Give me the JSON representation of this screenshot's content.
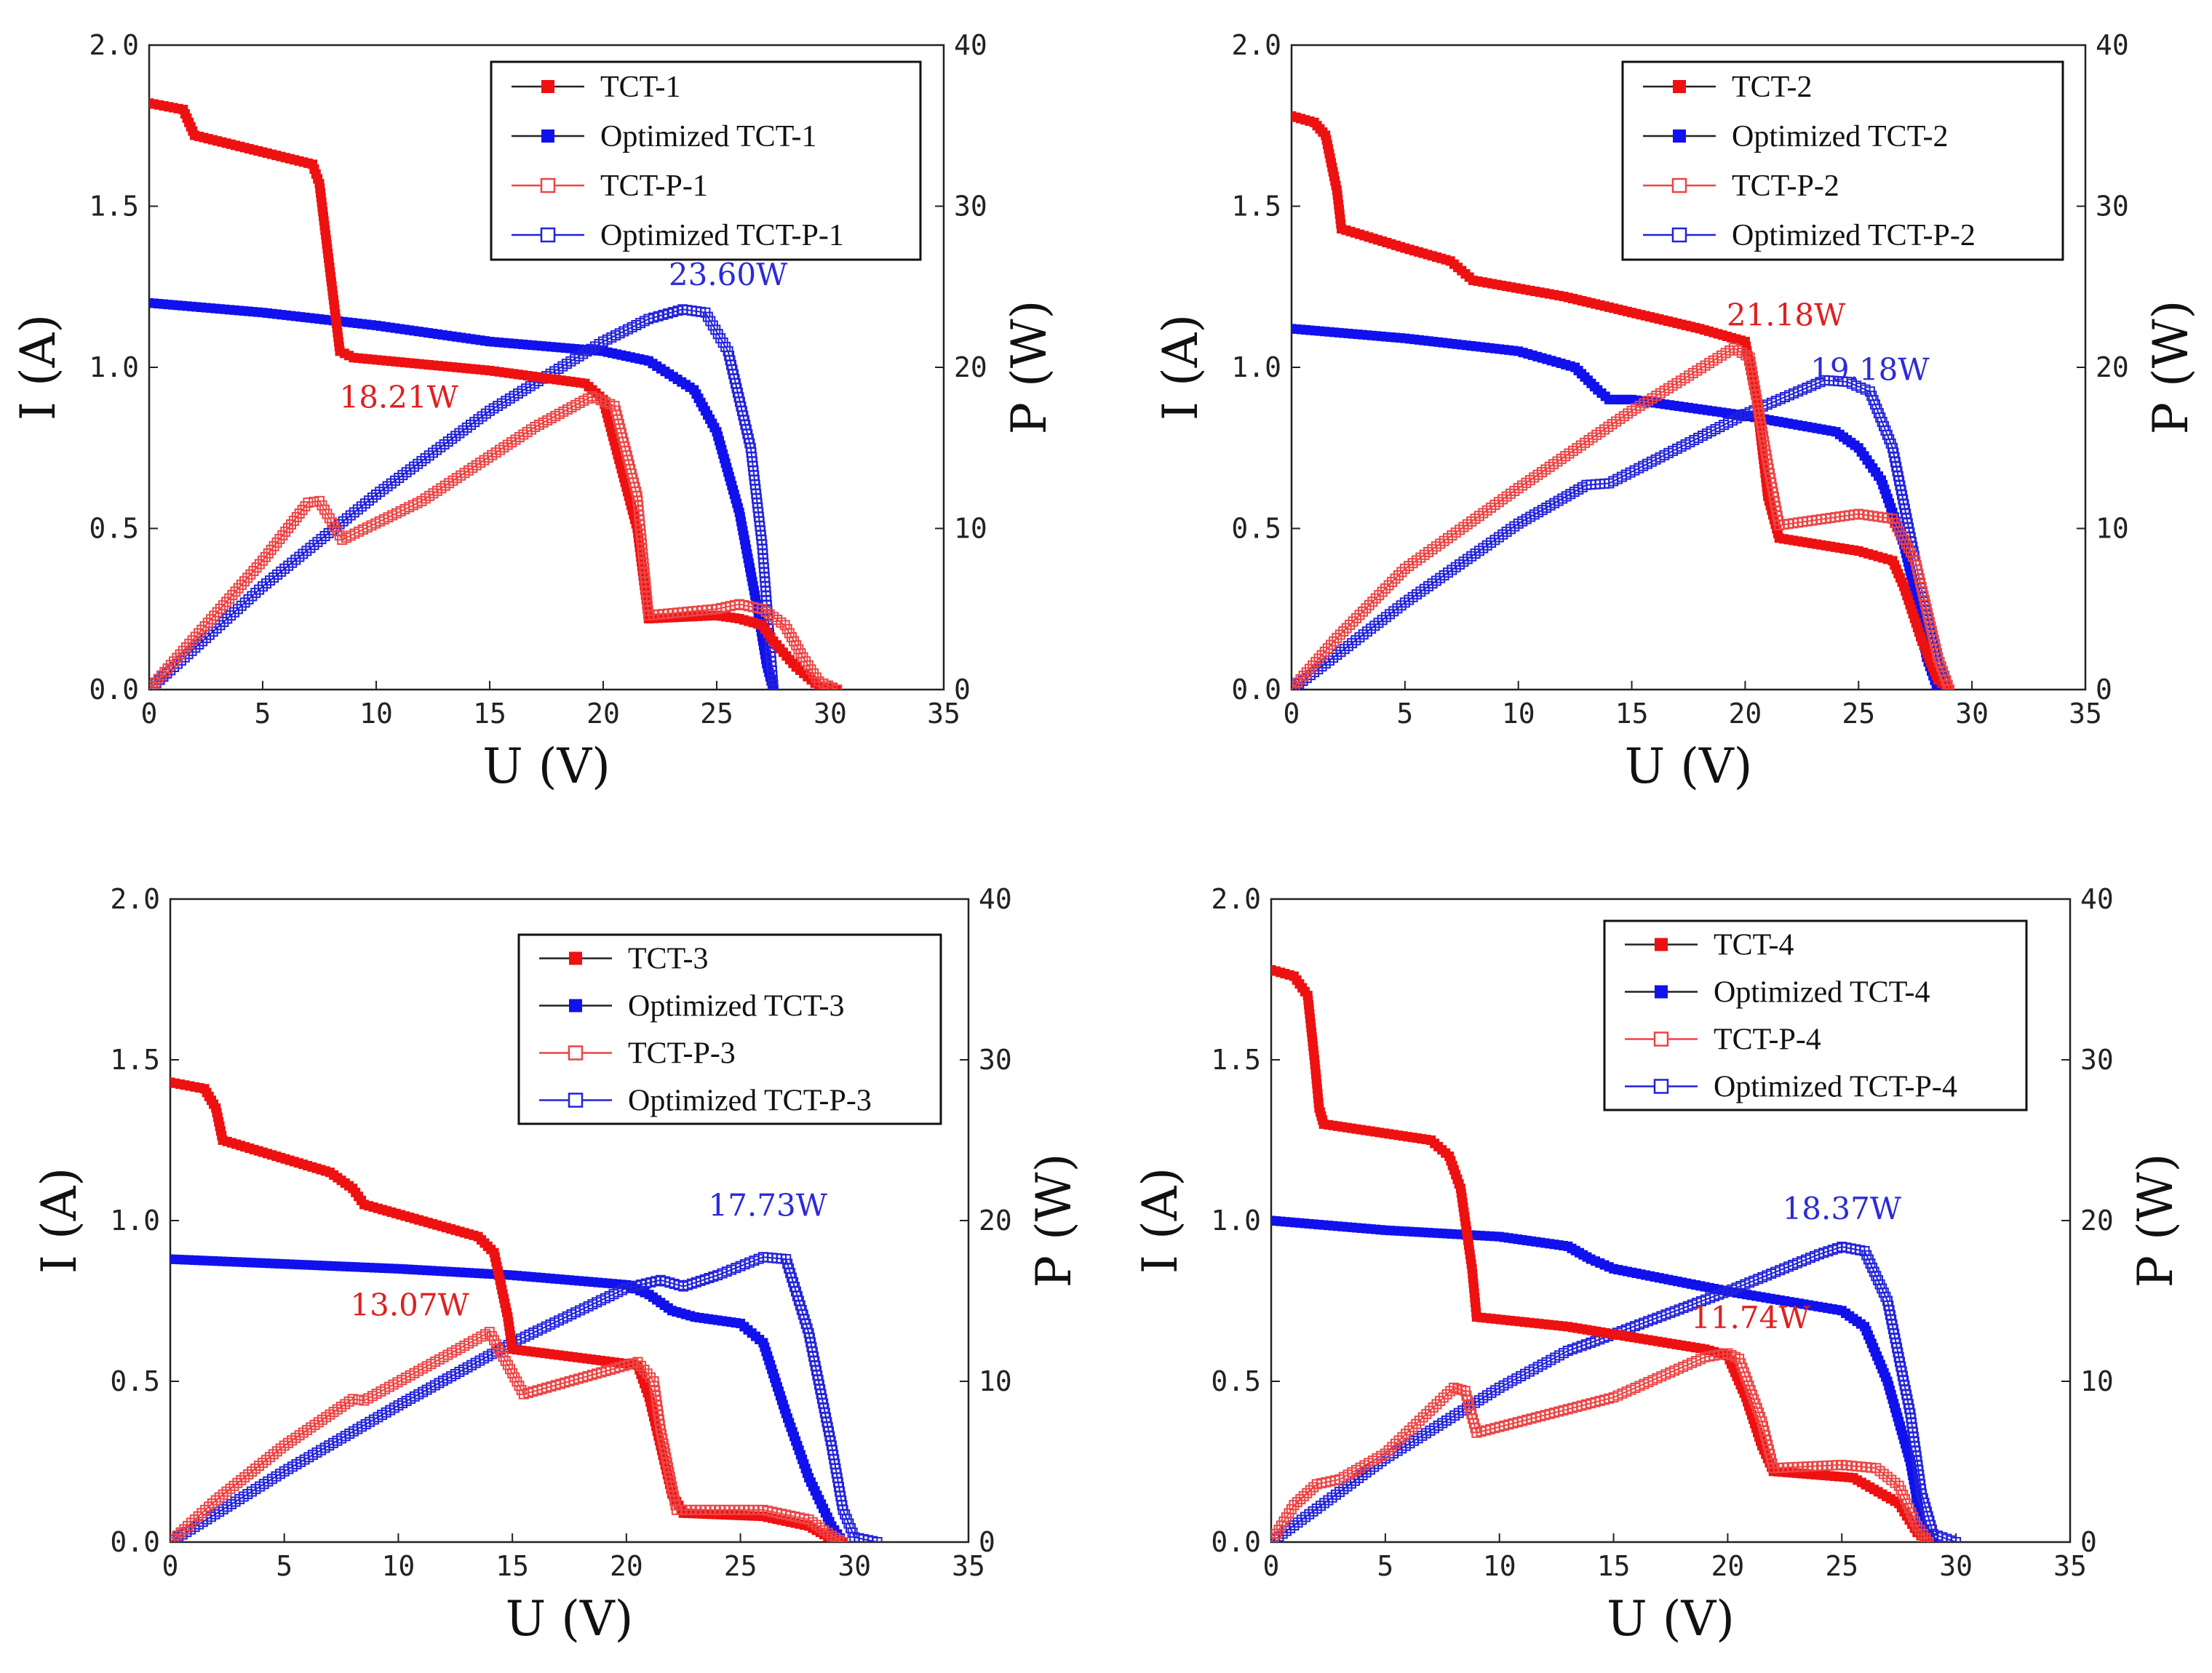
{
  "chart_data": [
    {
      "type": "line",
      "panel": "top-left",
      "xlabel": "U (V)",
      "ylabel_left": "I (A)",
      "ylabel_right": "P (W)",
      "xlim": [
        0,
        35
      ],
      "ylim_left": [
        0,
        2.0
      ],
      "ylim_right": [
        0,
        40
      ],
      "x_ticks": [
        "0",
        "5",
        "10",
        "15",
        "20",
        "25",
        "30",
        "35"
      ],
      "y_left_ticks": [
        "0.0",
        "0.5",
        "1.0",
        "1.5",
        "2.0"
      ],
      "y_right_ticks": [
        "0",
        "10",
        "20",
        "30",
        "40"
      ],
      "legend_position": "top-right",
      "legend": [
        "TCT-1",
        "Optimized TCT-1",
        "TCT-P-1",
        "Optimized TCT-P-1"
      ],
      "annotations": [
        {
          "text": "23.60W",
          "x": 25.5,
          "y": 25.1,
          "axis": "right",
          "color": "#2b2bd8"
        },
        {
          "text": "18.21W",
          "x": 11.0,
          "y": 17.5,
          "axis": "right",
          "color": "#e02020"
        }
      ],
      "series": [
        {
          "name": "TCT-1",
          "axis": "left",
          "marker": "filled-square",
          "color": "#ee1111",
          "x": [
            0,
            1.5,
            2,
            7.2,
            7.5,
            8.4,
            9,
            15,
            19.2,
            20,
            21.5,
            22,
            25,
            26,
            27,
            27.5,
            28.5,
            29.5,
            30.3
          ],
          "y": [
            1.82,
            1.8,
            1.72,
            1.63,
            1.57,
            1.05,
            1.03,
            0.99,
            0.95,
            0.9,
            0.5,
            0.22,
            0.23,
            0.22,
            0.2,
            0.15,
            0.07,
            0.01,
            0
          ]
        },
        {
          "name": "Optimized TCT-1",
          "axis": "left",
          "marker": "filled-square",
          "color": "#1111ee",
          "x": [
            0,
            5,
            10,
            15,
            20,
            22,
            24,
            25,
            26,
            26.8,
            27.2,
            27.5
          ],
          "y": [
            1.2,
            1.17,
            1.13,
            1.08,
            1.05,
            1.02,
            0.93,
            0.8,
            0.55,
            0.25,
            0.08,
            0
          ]
        },
        {
          "name": "TCT-P-1",
          "axis": "right",
          "marker": "open-square",
          "color": "#ee4444",
          "x": [
            0,
            3,
            5,
            7,
            7.5,
            8.5,
            12,
            17,
            19.5,
            20.5,
            21.5,
            22,
            25,
            26,
            27,
            28,
            28.8,
            29.5,
            30.3
          ],
          "y": [
            0,
            4.8,
            8,
            11.6,
            11.7,
            9.3,
            11.7,
            16.3,
            18.2,
            17.6,
            12,
            4.6,
            5,
            5.3,
            5,
            4,
            2,
            0.5,
            0
          ]
        },
        {
          "name": "Optimized TCT-P-1",
          "axis": "right",
          "marker": "open-square",
          "color": "#2222dd",
          "x": [
            0,
            5,
            10,
            15,
            20,
            22,
            23.5,
            24.5,
            25.5,
            26.5,
            27,
            27.5
          ],
          "y": [
            0,
            6.4,
            12.1,
            17.3,
            21.6,
            23,
            23.6,
            23.4,
            21,
            15,
            9,
            0
          ]
        }
      ]
    },
    {
      "type": "line",
      "panel": "top-right",
      "xlabel": "U (V)",
      "ylabel_left": "I (A)",
      "ylabel_right": "P (W)",
      "xlim": [
        0,
        35
      ],
      "ylim_left": [
        0,
        2.0
      ],
      "ylim_right": [
        0,
        40
      ],
      "x_ticks": [
        "0",
        "5",
        "10",
        "15",
        "20",
        "25",
        "30",
        "35"
      ],
      "y_left_ticks": [
        "0.0",
        "0.5",
        "1.0",
        "1.5",
        "2.0"
      ],
      "y_right_ticks": [
        "0",
        "10",
        "20",
        "30",
        "40"
      ],
      "legend_position": "top-right",
      "legend": [
        "TCT-2",
        "Optimized TCT-2",
        "TCT-P-2",
        "Optimized TCT-P-2"
      ],
      "annotations": [
        {
          "text": "21.18W",
          "x": 21.8,
          "y": 22.6,
          "axis": "right",
          "color": "#e02020"
        },
        {
          "text": "19.18W",
          "x": 25.5,
          "y": 19.2,
          "axis": "right",
          "color": "#2b2bd8"
        }
      ],
      "series": [
        {
          "name": "TCT-2",
          "axis": "left",
          "marker": "filled-square",
          "color": "#ee1111",
          "x": [
            0,
            1,
            1.5,
            2,
            2.2,
            5,
            7,
            8,
            12,
            15,
            18,
            20,
            20.5,
            21,
            21.5,
            25,
            26.5,
            27,
            27.8,
            28.5,
            29
          ],
          "y": [
            1.78,
            1.76,
            1.72,
            1.55,
            1.43,
            1.37,
            1.33,
            1.27,
            1.22,
            1.17,
            1.12,
            1.08,
            0.9,
            0.6,
            0.47,
            0.43,
            0.4,
            0.32,
            0.15,
            0.03,
            0
          ]
        },
        {
          "name": "Optimized TCT-2",
          "axis": "left",
          "marker": "filled-square",
          "color": "#1111ee",
          "x": [
            0,
            5,
            10,
            12.5,
            13.5,
            14,
            15,
            20,
            24,
            25,
            26,
            27,
            27.5,
            28,
            28.5
          ],
          "y": [
            1.12,
            1.09,
            1.05,
            1.0,
            0.93,
            0.9,
            0.9,
            0.85,
            0.8,
            0.75,
            0.65,
            0.45,
            0.3,
            0.1,
            0
          ]
        },
        {
          "name": "TCT-P-2",
          "axis": "right",
          "marker": "open-square",
          "color": "#ee4444",
          "x": [
            0,
            2,
            5,
            10,
            15,
            19.5,
            20.2,
            21,
            21.5,
            25,
            26.5,
            27.5,
            28,
            28.5,
            29
          ],
          "y": [
            0,
            3.2,
            7.5,
            12.5,
            17.3,
            21.2,
            20.6,
            14,
            10.2,
            10.9,
            10.6,
            8,
            5,
            2,
            0
          ]
        },
        {
          "name": "Optimized TCT-P-2",
          "axis": "right",
          "marker": "open-square",
          "color": "#2222dd",
          "x": [
            0,
            5,
            10,
            13,
            14,
            20,
            23.5,
            24.5,
            25.5,
            26.5,
            27.5,
            28.5,
            29
          ],
          "y": [
            0,
            5.4,
            10.3,
            12.7,
            12.8,
            17.1,
            19.2,
            19.1,
            18.5,
            15,
            8,
            1.5,
            0
          ]
        }
      ]
    },
    {
      "type": "line",
      "panel": "bottom-left",
      "xlabel": "U (V)",
      "ylabel_left": "I (A)",
      "ylabel_right": "P (W)",
      "xlim": [
        0,
        35
      ],
      "ylim_left": [
        0,
        2.0
      ],
      "ylim_right": [
        0,
        40
      ],
      "x_ticks": [
        "0",
        "5",
        "10",
        "15",
        "20",
        "25",
        "30",
        "35"
      ],
      "y_left_ticks": [
        "0.0",
        "0.5",
        "1.0",
        "1.5",
        "2.0"
      ],
      "y_right_ticks": [
        "0",
        "10",
        "20",
        "30",
        "40"
      ],
      "legend_position": "top-right",
      "legend": [
        "TCT-3",
        "Optimized TCT-3",
        "TCT-P-3",
        "Optimized TCT-P-3"
      ],
      "annotations": [
        {
          "text": "17.73W",
          "x": 26.2,
          "y": 20.3,
          "axis": "right",
          "color": "#2b2bd8"
        },
        {
          "text": "13.07W",
          "x": 10.5,
          "y": 14.1,
          "axis": "right",
          "color": "#e02020"
        }
      ],
      "series": [
        {
          "name": "TCT-3",
          "axis": "left",
          "marker": "filled-square",
          "color": "#ee1111",
          "x": [
            0,
            1.5,
            2,
            2.3,
            7,
            8,
            8.5,
            13.5,
            14.2,
            14.8,
            15,
            20.5,
            21,
            21.5,
            22,
            22.5,
            26,
            28,
            29,
            29.5
          ],
          "y": [
            1.43,
            1.41,
            1.35,
            1.25,
            1.15,
            1.1,
            1.05,
            0.95,
            0.9,
            0.7,
            0.6,
            0.55,
            0.45,
            0.3,
            0.15,
            0.09,
            0.08,
            0.05,
            0.01,
            0
          ]
        },
        {
          "name": "Optimized TCT-3",
          "axis": "left",
          "marker": "filled-square",
          "color": "#1111ee",
          "x": [
            0,
            10,
            15,
            20,
            21,
            22,
            23,
            25,
            26,
            27,
            28,
            29,
            29.5
          ],
          "y": [
            0.88,
            0.85,
            0.83,
            0.8,
            0.77,
            0.72,
            0.7,
            0.68,
            0.62,
            0.4,
            0.2,
            0.05,
            0
          ]
        },
        {
          "name": "TCT-P-3",
          "axis": "right",
          "marker": "open-square",
          "color": "#ee4444",
          "x": [
            0,
            2,
            5,
            8,
            8.5,
            14,
            15,
            15.5,
            20.5,
            21.2,
            21.5,
            22.2,
            26,
            28,
            29,
            29.5
          ],
          "y": [
            0,
            2.6,
            6,
            8.9,
            8.8,
            13.07,
            10.5,
            9.2,
            11.2,
            10,
            7,
            2,
            2,
            1.4,
            0.4,
            0
          ]
        },
        {
          "name": "Optimized TCT-P-3",
          "axis": "right",
          "marker": "open-square",
          "color": "#2222dd",
          "x": [
            0,
            5,
            10,
            15,
            20,
            21.5,
            22.5,
            24,
            26,
            27,
            28,
            29,
            29.5,
            30,
            31
          ],
          "y": [
            0,
            4.4,
            8.5,
            12.4,
            15.8,
            16.3,
            15.9,
            16.6,
            17.73,
            17.6,
            13,
            6,
            2,
            0.3,
            0
          ]
        }
      ]
    },
    {
      "type": "line",
      "panel": "bottom-right",
      "xlabel": "U (V)",
      "ylabel_left": "I (A)",
      "ylabel_right": "P (W)",
      "xlim": [
        0,
        35
      ],
      "ylim_left": [
        0,
        2.0
      ],
      "ylim_right": [
        0,
        40
      ],
      "x_ticks": [
        "0",
        "5",
        "10",
        "15",
        "20",
        "25",
        "30",
        "35"
      ],
      "y_left_ticks": [
        "0.0",
        "0.5",
        "1.0",
        "1.5",
        "2.0"
      ],
      "y_right_ticks": [
        "0",
        "10",
        "20",
        "30",
        "40"
      ],
      "legend_position": "top-right",
      "legend": [
        "TCT-4",
        "Optimized TCT-4",
        "TCT-P-4",
        "Optimized TCT-P-4"
      ],
      "annotations": [
        {
          "text": "18.37W",
          "x": 25.0,
          "y": 20.1,
          "axis": "right",
          "color": "#2b2bd8"
        },
        {
          "text": "11.74W",
          "x": 21.0,
          "y": 13.3,
          "axis": "right",
          "color": "#e02020"
        }
      ],
      "series": [
        {
          "name": "TCT-4",
          "axis": "left",
          "marker": "filled-square",
          "color": "#ee1111",
          "x": [
            0,
            1,
            1.6,
            1.9,
            2.1,
            2.3,
            7,
            7.8,
            8.3,
            8.8,
            9,
            13,
            19,
            20,
            20.8,
            21.5,
            22,
            25.5,
            27.5,
            28.3,
            28.8
          ],
          "y": [
            1.78,
            1.76,
            1.7,
            1.5,
            1.35,
            1.3,
            1.25,
            1.2,
            1.1,
            0.85,
            0.7,
            0.67,
            0.6,
            0.58,
            0.45,
            0.3,
            0.22,
            0.2,
            0.12,
            0.03,
            0
          ]
        },
        {
          "name": "Optimized TCT-4",
          "axis": "left",
          "marker": "filled-square",
          "color": "#1111ee",
          "x": [
            0,
            5,
            10,
            13,
            14,
            15,
            20,
            25,
            26,
            27,
            28,
            28.5,
            29
          ],
          "y": [
            1.0,
            0.97,
            0.95,
            0.92,
            0.88,
            0.85,
            0.78,
            0.72,
            0.67,
            0.5,
            0.25,
            0.05,
            0
          ]
        },
        {
          "name": "TCT-P-4",
          "axis": "right",
          "marker": "open-square",
          "color": "#ee4444",
          "x": [
            0,
            1,
            2,
            3,
            5,
            8,
            8.5,
            9,
            15,
            19,
            20,
            20.5,
            21.5,
            22,
            25,
            26.5,
            27.5,
            28.3,
            28.8
          ],
          "y": [
            0,
            2.3,
            3.6,
            3.9,
            5.5,
            9.6,
            9.4,
            6.8,
            9,
            11.5,
            11.74,
            11.4,
            7.5,
            4.6,
            4.8,
            4.6,
            3.5,
            1,
            0
          ]
        },
        {
          "name": "Optimized TCT-P-4",
          "axis": "right",
          "marker": "open-square",
          "color": "#2222dd",
          "x": [
            0,
            5,
            10,
            13,
            14,
            20,
            24,
            25,
            26,
            27,
            28,
            28.5,
            29,
            30
          ],
          "y": [
            0,
            5.2,
            9.6,
            11.9,
            12.4,
            15.6,
            17.9,
            18.37,
            18.1,
            15,
            8,
            3,
            0.5,
            0
          ]
        }
      ]
    }
  ]
}
